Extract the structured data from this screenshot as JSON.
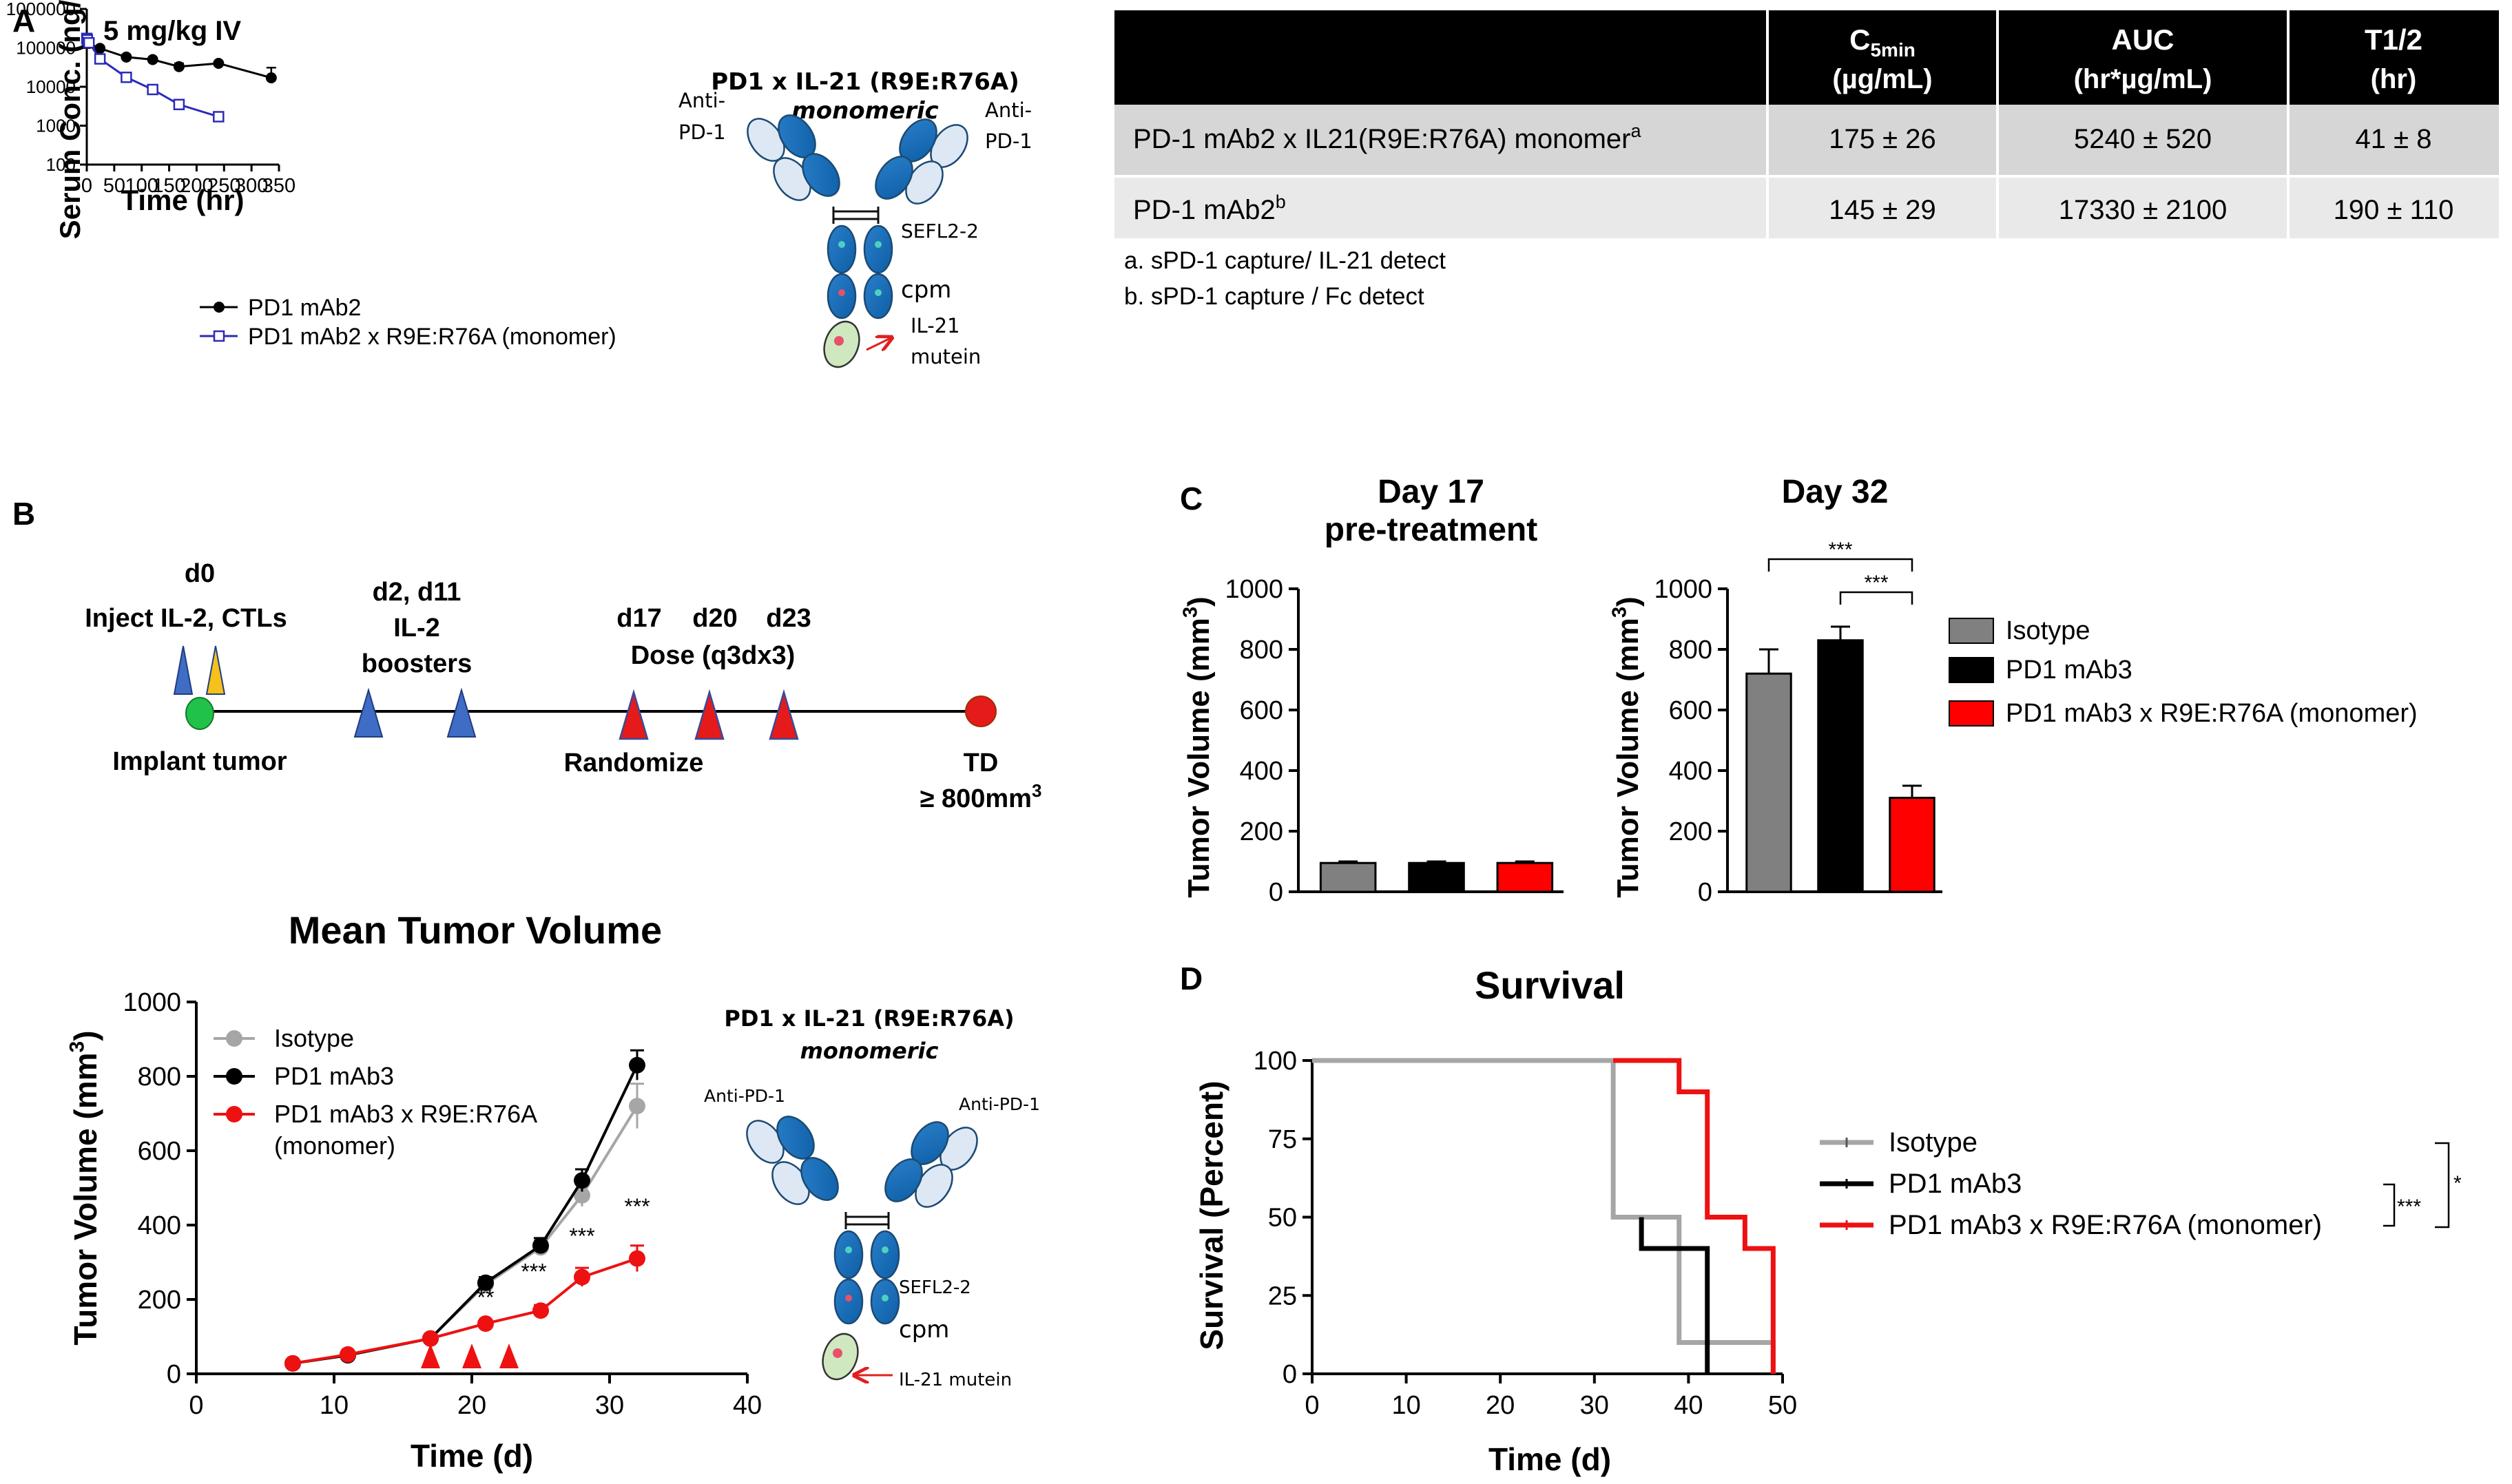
{
  "panels": {
    "A": "A",
    "B": "B",
    "C": "C",
    "D": "D"
  },
  "diagram": {
    "title": "PD1 x IL-21 (R9E:R76A)",
    "subtitle": "monomeric",
    "anti_pd1_left": [
      "Anti-",
      "PD-1"
    ],
    "anti_pd1_right": [
      "Anti-",
      "PD-1"
    ],
    "anti_pd1_single": "Anti-PD-1",
    "sefl": "SEFL2-2",
    "cpm": "cpm",
    "il21_lines": [
      "IL-21",
      "mutein"
    ],
    "il21_single": "IL-21 mutein"
  },
  "pk_table": {
    "headers": [
      "",
      "C5min",
      "AUC",
      "T1/2"
    ],
    "header_sub": "5min",
    "header_units": [
      "",
      "(µg/mL)",
      "(hr*µg/mL)",
      "(hr)"
    ],
    "rows": [
      {
        "name": "PD-1 mAb2 x IL21(R9E:R76A) monomer",
        "sup": "a",
        "cells": [
          "175 ± 26",
          "5240 ± 520",
          "41 ± 8"
        ]
      },
      {
        "name": "PD-1 mAb2",
        "sup": "b",
        "cells": [
          "145 ± 29",
          "17330 ± 2100",
          "190 ± 110"
        ]
      }
    ],
    "footnotes": [
      "a. sPD-1 capture/ IL-21 detect",
      "b. sPD-1 capture / Fc detect"
    ]
  },
  "timeline": {
    "labels": {
      "d0": "d0",
      "inject": "Inject IL-2, CTLs",
      "d2d11": "d2, d11",
      "il2": "IL-2",
      "boosters": "boosters",
      "d17": "d17",
      "d20": "d20",
      "d23": "d23",
      "dose": "Dose (q3dx3)",
      "implant": "Implant tumor",
      "randomize": "Randomize",
      "td": "TD",
      "td_value": "≥ 800mm",
      "td_sup": "3"
    }
  },
  "chart_data": [
    {
      "id": "pk",
      "type": "line",
      "title": "5 mg/kg IV",
      "xlabel": "Time (hr)",
      "ylabel": "Serum Conc. (ng/mL)",
      "yscale": "log",
      "xlim": [
        0,
        350
      ],
      "ylim": [
        100,
        1000000
      ],
      "xticks": [
        0,
        50,
        100,
        150,
        200,
        250,
        300,
        350
      ],
      "yticks": [
        100,
        1000,
        10000,
        100000,
        1000000
      ],
      "ytick_labels": [
        "100",
        "1000",
        "10000",
        "100000",
        "1000000"
      ],
      "series": [
        {
          "name": "PD1 mAb2",
          "color": "#000000",
          "marker": "filled-circle",
          "x": [
            0.08,
            1,
            4,
            24,
            72,
            120,
            168,
            240,
            336
          ],
          "y": [
            150000,
            140000,
            130000,
            97000,
            58000,
            50000,
            33000,
            40000,
            17000
          ],
          "err": [
            20000,
            20000,
            15000,
            12000,
            9000,
            7000,
            7000,
            3000,
            14000
          ]
        },
        {
          "name": "PD1 mAb2 x R9E:R76A (monomer)",
          "color": "#2b2bb8",
          "marker": "open-square",
          "x": [
            0.08,
            1,
            4,
            24,
            72,
            120,
            168,
            240
          ],
          "y": [
            175000,
            160000,
            135000,
            52000,
            17500,
            8500,
            3500,
            1700
          ],
          "err": [
            26000,
            22000,
            15000,
            6000,
            2500,
            1200,
            1000,
            150
          ]
        }
      ]
    },
    {
      "id": "mean-tumor-volume",
      "type": "line",
      "title": "Mean Tumor  Volume",
      "xlabel": "Time (d)",
      "ylabel": "Tumor Volume (mm",
      "ylabel_sup": "3",
      "ylabel_end": ")",
      "xlim": [
        0,
        40
      ],
      "ylim": [
        0,
        1000
      ],
      "xticks": [
        0,
        10,
        20,
        30,
        40
      ],
      "yticks": [
        0,
        200,
        400,
        600,
        800,
        1000
      ],
      "dose_days": [
        17,
        20,
        22.7
      ],
      "series": [
        {
          "name": "Isotype",
          "color": "#a6a6a6",
          "x": [
            7,
            11,
            17,
            21,
            25,
            28,
            32
          ],
          "y": [
            28,
            50,
            95,
            240,
            340,
            480,
            720
          ],
          "err": [
            4,
            5,
            8,
            15,
            20,
            30,
            60
          ]
        },
        {
          "name": "PD1 mAb3",
          "color": "#000000",
          "x": [
            7,
            11,
            17,
            21,
            25,
            28,
            32
          ],
          "y": [
            28,
            50,
            95,
            245,
            345,
            520,
            830
          ],
          "err": [
            4,
            5,
            8,
            15,
            20,
            30,
            40
          ]
        },
        {
          "name": "PD1 mAb3 x R9E:R76A",
          "name2": "(monomer)",
          "color": "#ee1111",
          "x": [
            7,
            11,
            17,
            21,
            25,
            28,
            32
          ],
          "y": [
            28,
            52,
            95,
            135,
            170,
            260,
            310
          ],
          "err": [
            4,
            5,
            8,
            10,
            15,
            25,
            35
          ]
        }
      ],
      "annotations": [
        {
          "x": 21,
          "y": 185,
          "text": "**"
        },
        {
          "x": 24.5,
          "y": 255,
          "text": "***"
        },
        {
          "x": 28,
          "y": 350,
          "text": "***"
        },
        {
          "x": 32,
          "y": 430,
          "text": "***"
        }
      ]
    },
    {
      "id": "day17",
      "type": "bar",
      "title": "Day 17",
      "title2": "pre-treatment",
      "ylabel": "Tumor Volume (mm",
      "ylabel_sup": "3",
      "ylabel_end": ")",
      "ylim": [
        0,
        1000
      ],
      "yticks": [
        0,
        200,
        400,
        600,
        800,
        1000
      ],
      "categories": [
        "Isotype",
        "PD1 mAb3",
        "PD1 mAb3 x R9E:R76A (monomer)"
      ],
      "values": [
        95,
        95,
        95
      ],
      "err": [
        5,
        5,
        5
      ],
      "colors": [
        "#808080",
        "#000000",
        "#ff0000"
      ]
    },
    {
      "id": "day32",
      "type": "bar",
      "title": "Day 32",
      "ylabel": "Tumor Volume (mm",
      "ylabel_sup": "3",
      "ylabel_end": ")",
      "ylim": [
        0,
        1000
      ],
      "yticks": [
        0,
        200,
        400,
        600,
        800,
        1000
      ],
      "categories": [
        "Isotype",
        "PD1 mAb3",
        "PD1 mAb3 x R9E:R76A (monomer)"
      ],
      "values": [
        720,
        830,
        310
      ],
      "err": [
        80,
        45,
        40
      ],
      "colors": [
        "#808080",
        "#000000",
        "#ff0000"
      ],
      "significance": [
        "***",
        "***"
      ]
    },
    {
      "id": "survival",
      "type": "line",
      "title": "Survival",
      "xlabel": "Time (d)",
      "ylabel": "Survival (Percent)",
      "xlim": [
        0,
        50
      ],
      "ylim": [
        0,
        100
      ],
      "xticks": [
        0,
        10,
        20,
        30,
        40,
        50
      ],
      "yticks": [
        0,
        25,
        50,
        75,
        100
      ],
      "series": [
        {
          "name": "Isotype",
          "color": "#a6a6a6",
          "steps": [
            [
              0,
              100
            ],
            [
              32,
              100
            ],
            [
              32,
              50
            ],
            [
              39,
              50
            ],
            [
              39,
              10
            ],
            [
              49,
              10
            ],
            [
              49,
              0
            ]
          ]
        },
        {
          "name": "PD1 mAb3",
          "color": "#000000",
          "steps": [
            [
              35,
              50
            ],
            [
              35,
              40
            ],
            [
              42,
              40
            ],
            [
              42,
              0
            ]
          ]
        },
        {
          "name": "PD1 mAb3 x R9E:R76A (monomer)",
          "color": "#ee1111",
          "steps": [
            [
              32,
              100
            ],
            [
              39,
              100
            ],
            [
              39,
              90
            ],
            [
              42,
              90
            ],
            [
              42,
              50
            ],
            [
              46,
              50
            ],
            [
              46,
              40
            ],
            [
              49,
              40
            ],
            [
              49,
              0
            ]
          ]
        }
      ],
      "significance": [
        "***",
        "*"
      ]
    }
  ]
}
